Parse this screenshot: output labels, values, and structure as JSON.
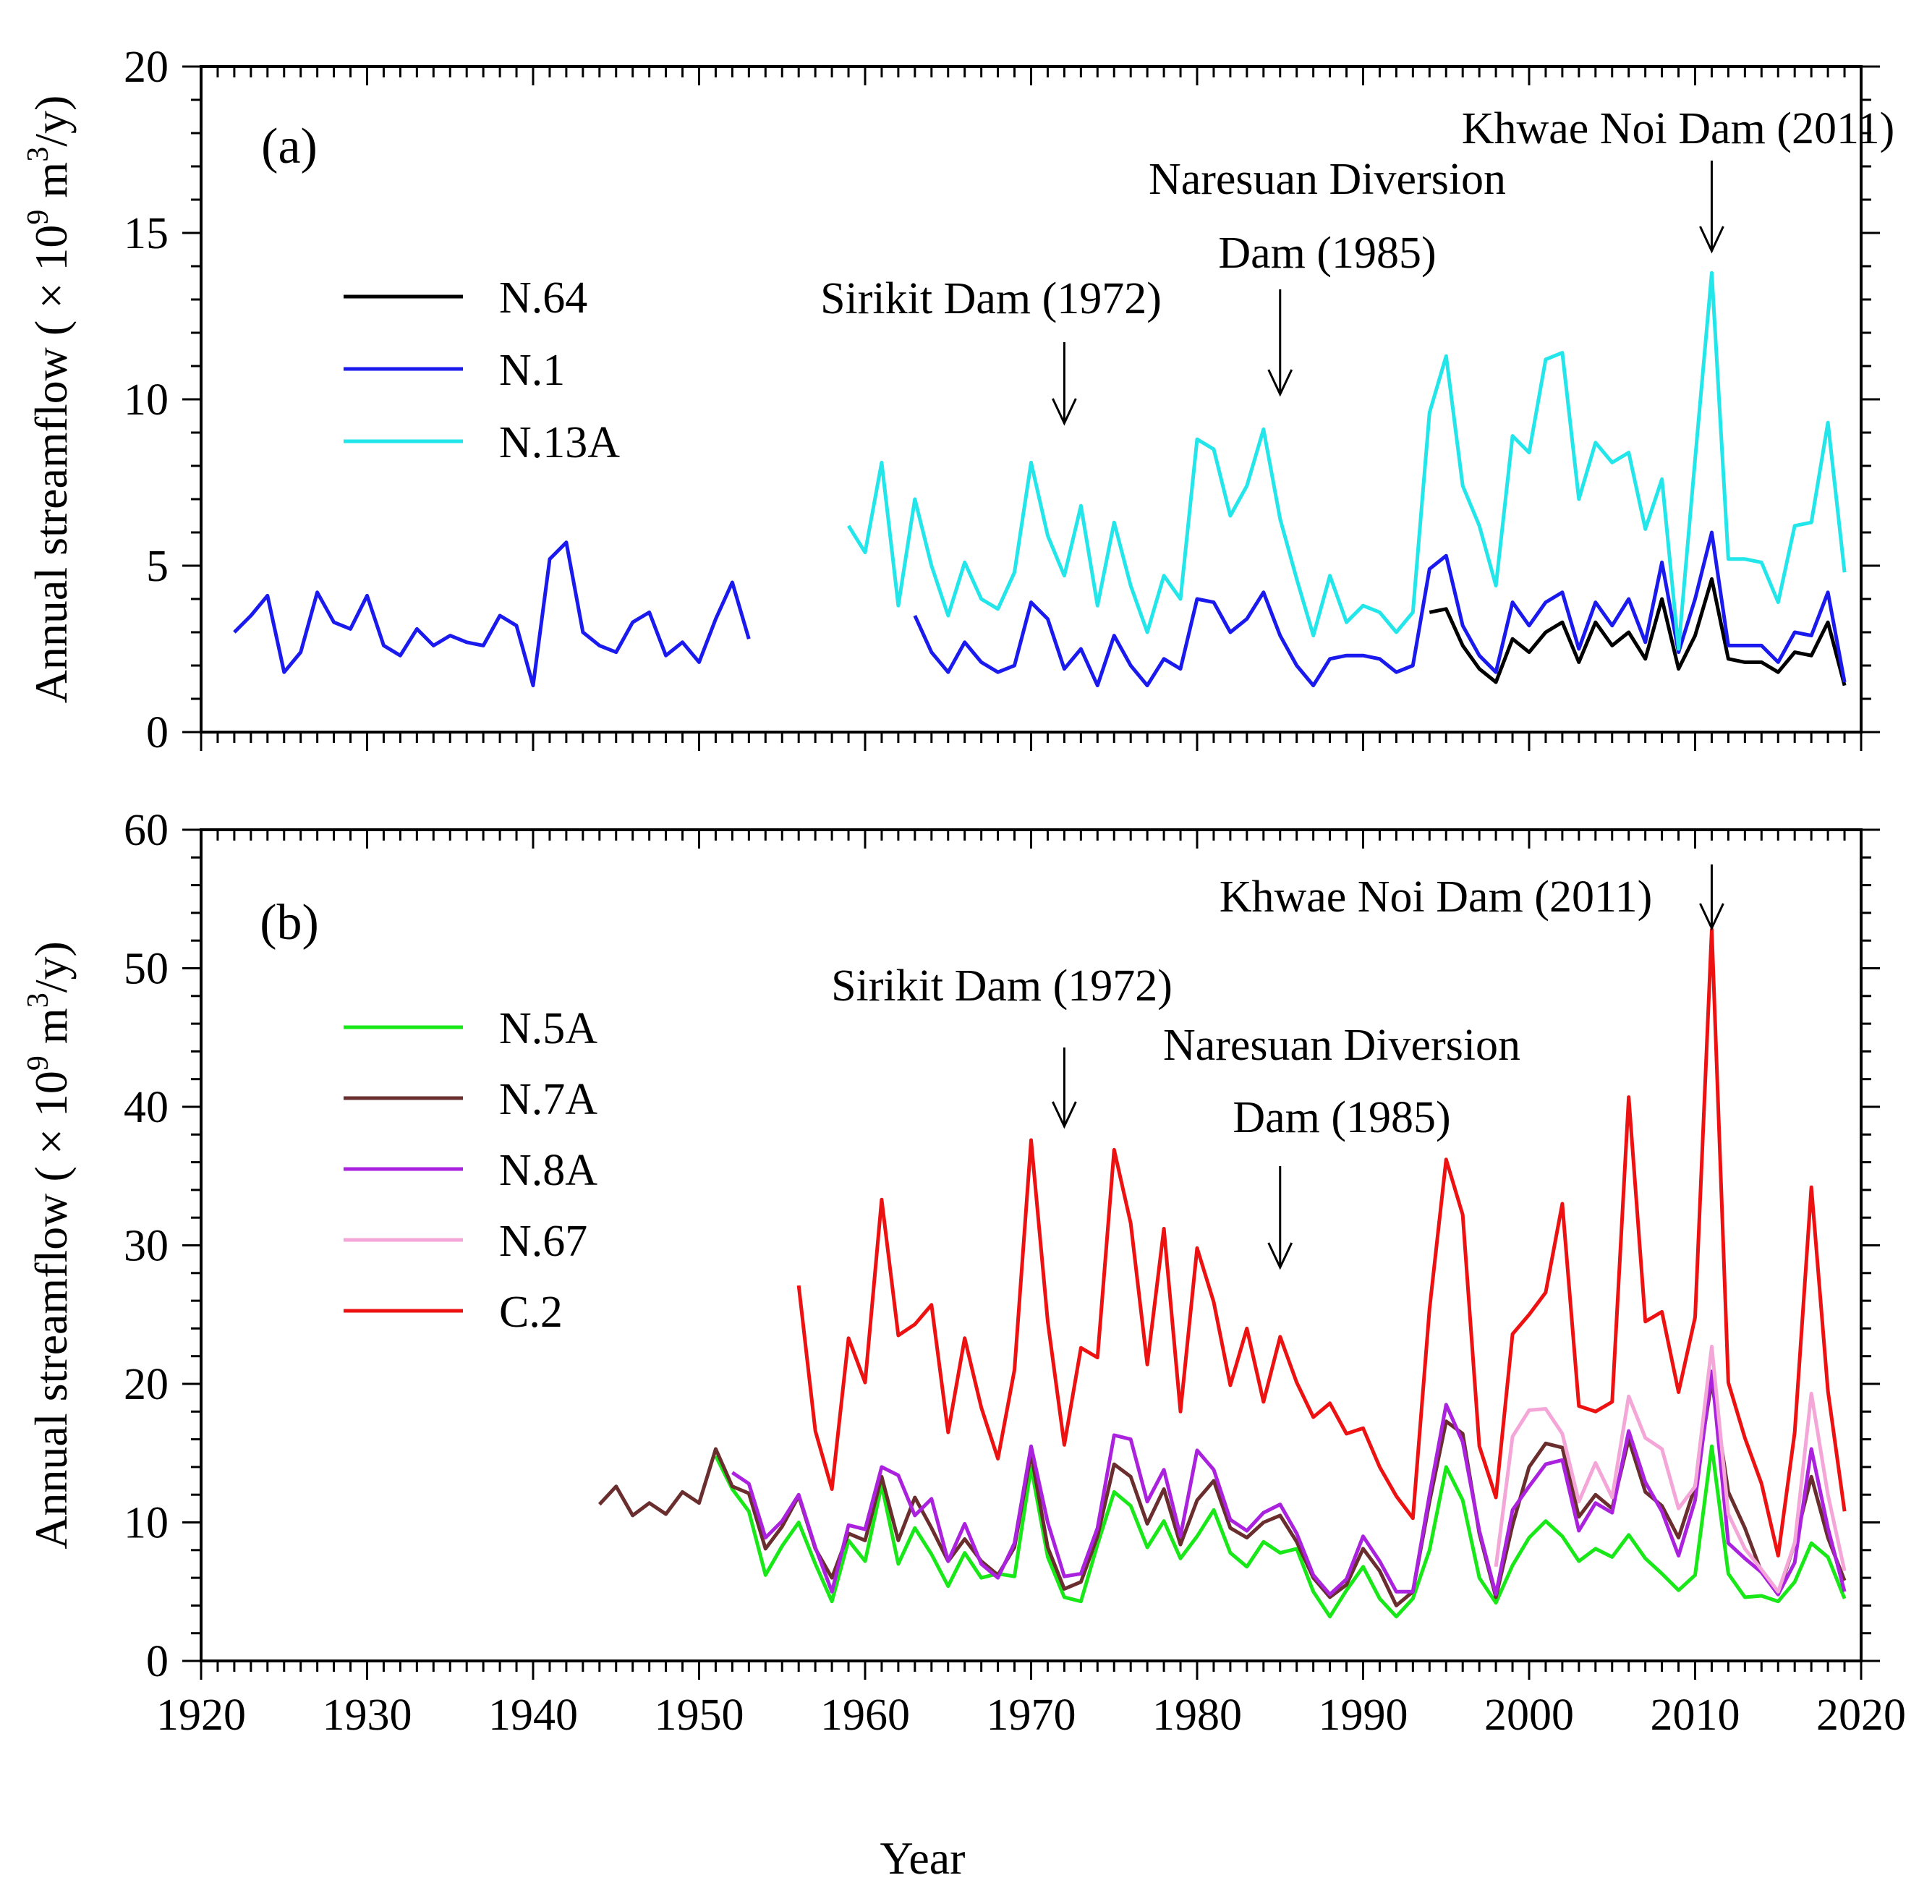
{
  "chart_data": [
    {
      "type": "line",
      "panel_label": "(a)",
      "ylabel_prefix": "Annual streamflow ( × 10",
      "ylabel_exp": "9",
      "ylabel_mid": " m",
      "ylabel_exp2": "3",
      "ylabel_suffix": "/y)",
      "xlim": [
        1920,
        2020
      ],
      "ylim": [
        0,
        20
      ],
      "y_ticks": [
        "0",
        "5",
        "10",
        "15",
        "20"
      ],
      "legend_position": "upper-left",
      "series": [
        {
          "name": "N.64",
          "color": "#000000",
          "x": [
            1994,
            1995,
            1996,
            1997,
            1998,
            1999,
            2000,
            2001,
            2002,
            2003,
            2004,
            2005,
            2006,
            2007,
            2008,
            2009,
            2010,
            2011,
            2012,
            2013,
            2014,
            2015,
            2016,
            2017,
            2018,
            2019
          ],
          "y": [
            3.6,
            3.7,
            2.6,
            1.9,
            1.5,
            2.8,
            2.4,
            3.0,
            3.3,
            2.1,
            3.3,
            2.6,
            3.0,
            2.2,
            4.0,
            1.9,
            2.9,
            4.6,
            2.2,
            2.1,
            2.1,
            1.8,
            2.4,
            2.3,
            3.3,
            1.4
          ]
        },
        {
          "name": "N.1",
          "color": "#1a1aee",
          "x": [
            1922,
            1923,
            1924,
            1925,
            1926,
            1927,
            1928,
            1929,
            1930,
            1931,
            1932,
            1933,
            1934,
            1935,
            1936,
            1937,
            1938,
            1939,
            1940,
            1941,
            1942,
            1943,
            1944,
            1945,
            1946,
            1947,
            1948,
            1949,
            1950,
            1951,
            1952,
            1953,
            null,
            1963,
            1964,
            1965,
            1966,
            1967,
            1968,
            1969,
            1970,
            1971,
            1972,
            1973,
            1974,
            1975,
            1976,
            1977,
            1978,
            1979,
            1980,
            1981,
            1982,
            1983,
            1984,
            1985,
            1986,
            1987,
            1988,
            1989,
            1990,
            1991,
            1992,
            1993,
            1994,
            1995,
            1996,
            1997,
            1998,
            1999,
            2000,
            2001,
            2002,
            2003,
            2004,
            2005,
            2006,
            2007,
            2008,
            2009,
            2010,
            2011,
            2012,
            2013,
            2014,
            2015,
            2016,
            2017,
            2018,
            2019
          ],
          "y": [
            3.0,
            3.5,
            4.1,
            1.8,
            2.4,
            4.2,
            3.3,
            3.1,
            4.1,
            2.6,
            2.3,
            3.1,
            2.6,
            2.9,
            2.7,
            2.6,
            3.5,
            3.2,
            1.4,
            5.2,
            5.7,
            3.0,
            2.6,
            2.4,
            3.3,
            3.6,
            2.3,
            2.7,
            2.1,
            3.4,
            4.5,
            2.8,
            null,
            3.5,
            2.4,
            1.8,
            2.7,
            2.1,
            1.8,
            2.0,
            3.9,
            3.4,
            1.9,
            2.5,
            1.4,
            2.9,
            2.0,
            1.4,
            2.2,
            1.9,
            4.0,
            3.9,
            3.0,
            3.4,
            4.2,
            2.9,
            2.0,
            1.4,
            2.2,
            2.3,
            2.3,
            2.2,
            1.8,
            2.0,
            4.9,
            5.3,
            3.2,
            2.3,
            1.8,
            3.9,
            3.2,
            3.9,
            4.2,
            2.5,
            3.9,
            3.2,
            4.0,
            2.7,
            5.1,
            2.4,
            4.0,
            6.0,
            2.6,
            2.6,
            2.6,
            2.1,
            3.0,
            2.9,
            4.2,
            1.5
          ]
        },
        {
          "name": "N.13A",
          "color": "#22e6ea",
          "x": [
            1959,
            1960,
            1961,
            1962,
            1963,
            1964,
            1965,
            1966,
            1967,
            1968,
            1969,
            1970,
            1971,
            1972,
            1973,
            1974,
            1975,
            1976,
            1977,
            1978,
            1979,
            1980,
            1981,
            1982,
            1983,
            1984,
            1985,
            1986,
            1987,
            1988,
            1989,
            1990,
            1991,
            1992,
            1993,
            1994,
            1995,
            1996,
            1997,
            1998,
            1999,
            2000,
            2001,
            2002,
            2003,
            2004,
            2005,
            2006,
            2007,
            2008,
            2009,
            2010,
            2011,
            2012,
            2013,
            2014,
            2015,
            2016,
            2017,
            2018,
            2019
          ],
          "y": [
            6.2,
            5.4,
            8.1,
            3.8,
            7.0,
            5.0,
            3.5,
            5.1,
            4.0,
            3.7,
            4.8,
            8.1,
            5.9,
            4.7,
            6.8,
            3.8,
            6.3,
            4.4,
            3.0,
            4.7,
            4.0,
            8.8,
            8.5,
            6.5,
            7.4,
            9.1,
            6.4,
            4.6,
            2.9,
            4.7,
            3.3,
            3.8,
            3.6,
            3.0,
            3.6,
            9.6,
            11.3,
            7.4,
            6.2,
            4.4,
            8.9,
            8.4,
            11.2,
            11.4,
            7.0,
            8.7,
            8.1,
            8.4,
            6.1,
            7.6,
            2.5,
            8.2,
            13.8,
            5.2,
            5.2,
            5.1,
            3.9,
            6.2,
            6.3,
            9.3,
            4.8
          ]
        }
      ],
      "annotations": [
        {
          "lines": [
            "Sirikit Dam (1972)"
          ],
          "arrow_year": 1972
        },
        {
          "lines": [
            "Naresuan Diversion",
            "Dam (1985)"
          ],
          "arrow_year": 1985
        },
        {
          "lines": [
            "Khwae Noi Dam (2011)"
          ],
          "arrow_year": 2011
        }
      ]
    },
    {
      "type": "line",
      "panel_label": "(b)",
      "ylabel_prefix": "Annual streamflow ( × 10",
      "ylabel_exp": "9",
      "ylabel_mid": " m",
      "ylabel_exp2": "3",
      "ylabel_suffix": "/y)",
      "xlabel": "Year",
      "xlim": [
        1920,
        2020
      ],
      "ylim": [
        0,
        60
      ],
      "x_ticks": [
        "1920",
        "1930",
        "1940",
        "1950",
        "1960",
        "1970",
        "1980",
        "1990",
        "2000",
        "2010",
        "2020"
      ],
      "y_ticks": [
        "0",
        "10",
        "20",
        "30",
        "40",
        "50",
        "60"
      ],
      "legend_position": "upper-left",
      "series": [
        {
          "name": "N.5A",
          "color": "#18e818",
          "x": [
            1951,
            1952,
            1953,
            1954,
            1955,
            1956,
            1957,
            1958,
            1959,
            1960,
            1961,
            1962,
            1963,
            1964,
            1965,
            1966,
            1967,
            1968,
            1969,
            1970,
            1971,
            1972,
            1973,
            1974,
            1975,
            1976,
            1977,
            1978,
            1979,
            1980,
            1981,
            1982,
            1983,
            1984,
            1985,
            1986,
            1987,
            1988,
            1989,
            1990,
            1991,
            1992,
            1993,
            1994,
            1995,
            1996,
            1997,
            1998,
            1999,
            2000,
            2001,
            2002,
            2003,
            2004,
            2005,
            2006,
            2007,
            2008,
            2009,
            2010,
            2011,
            2012,
            2013,
            2014,
            2015,
            2016,
            2017,
            2018,
            2019
          ],
          "y": [
            14.8,
            12.4,
            10.8,
            6.2,
            8.3,
            10.0,
            7.0,
            4.3,
            8.7,
            7.2,
            12.7,
            7.0,
            9.6,
            7.7,
            5.4,
            7.8,
            6.0,
            6.3,
            6.1,
            14.0,
            7.5,
            4.6,
            4.3,
            8.4,
            12.2,
            11.2,
            8.2,
            10.1,
            7.4,
            9.0,
            10.9,
            7.8,
            6.8,
            8.6,
            7.8,
            8.1,
            5.0,
            3.2,
            5.1,
            6.8,
            4.5,
            3.2,
            4.5,
            8.0,
            14.0,
            11.6,
            6.0,
            4.2,
            6.9,
            8.9,
            10.1,
            9.0,
            7.2,
            8.1,
            7.5,
            9.1,
            7.4,
            6.3,
            5.1,
            6.2,
            15.5,
            6.3,
            4.6,
            4.7,
            4.3,
            5.7,
            8.5,
            7.5,
            4.5
          ]
        },
        {
          "name": "N.7A",
          "color": "#6b2e2e",
          "x": [
            1944,
            1945,
            1946,
            1947,
            1948,
            1949,
            1950,
            1951,
            1952,
            1953,
            1954,
            1955,
            1956,
            1957,
            1958,
            1959,
            1960,
            1961,
            1962,
            1963,
            1964,
            1965,
            1966,
            1967,
            1968,
            1969,
            1970,
            1971,
            1972,
            1973,
            1974,
            1975,
            1976,
            1977,
            1978,
            1979,
            1980,
            1981,
            1982,
            1983,
            1984,
            1985,
            1986,
            1987,
            1988,
            1989,
            1990,
            1991,
            1992,
            1993,
            1994,
            1995,
            1996,
            1997,
            1998,
            1999,
            2000,
            2001,
            2002,
            2003,
            2004,
            2005,
            2006,
            2007,
            2008,
            2009,
            2010,
            2011,
            2012,
            2013,
            2014,
            2015,
            2016,
            2017,
            2018,
            2019
          ],
          "y": [
            11.3,
            12.6,
            10.5,
            11.4,
            10.6,
            12.2,
            11.4,
            15.3,
            12.6,
            12.1,
            8.1,
            9.7,
            11.9,
            8.1,
            6.0,
            9.2,
            8.7,
            13.3,
            8.7,
            11.8,
            9.6,
            7.2,
            8.8,
            7.2,
            6.2,
            8.2,
            15.0,
            8.2,
            5.2,
            5.7,
            9.0,
            14.2,
            13.3,
            9.9,
            12.4,
            8.4,
            11.6,
            13.0,
            9.6,
            8.9,
            10.0,
            10.5,
            8.6,
            6.0,
            4.6,
            5.5,
            8.1,
            6.5,
            4.0,
            5.0,
            11.5,
            17.3,
            16.4,
            9.2,
            4.6,
            9.8,
            14.0,
            15.7,
            15.4,
            10.4,
            12.0,
            11.0,
            16.0,
            12.2,
            11.2,
            8.9,
            12.6,
            20.2,
            12.2,
            9.6,
            6.4,
            4.8,
            8.5,
            13.3,
            8.9,
            5.8
          ]
        },
        {
          "name": "N.8A",
          "color": "#aa22dd",
          "x": [
            1952,
            1953,
            1954,
            1955,
            1956,
            1957,
            1958,
            1959,
            1960,
            1961,
            1962,
            1963,
            1964,
            1965,
            1966,
            1967,
            1968,
            1969,
            1970,
            1971,
            1972,
            1973,
            1974,
            1975,
            1976,
            1977,
            1978,
            1979,
            1980,
            1981,
            1982,
            1983,
            1984,
            1985,
            1986,
            1987,
            1988,
            1989,
            1990,
            1991,
            1992,
            1993,
            1994,
            1995,
            1996,
            1997,
            1998,
            1999,
            2000,
            2001,
            2002,
            2003,
            2004,
            2005,
            2006,
            2007,
            2008,
            2009,
            2010,
            2011,
            2012,
            2013,
            2014,
            2015,
            2016,
            2017,
            2018,
            2019
          ],
          "y": [
            13.6,
            12.8,
            8.9,
            10.1,
            12.0,
            8.2,
            5.0,
            9.8,
            9.5,
            14.0,
            13.4,
            10.5,
            11.7,
            7.2,
            9.9,
            7.0,
            6.0,
            8.5,
            15.5,
            10.0,
            6.1,
            6.3,
            9.6,
            16.3,
            16.0,
            11.5,
            13.8,
            9.0,
            15.2,
            13.8,
            10.2,
            9.4,
            10.7,
            11.3,
            9.2,
            6.2,
            4.8,
            5.9,
            9.0,
            7.2,
            5.0,
            5.0,
            12.0,
            18.5,
            15.8,
            9.4,
            4.8,
            10.9,
            12.6,
            14.2,
            14.5,
            9.4,
            11.4,
            10.7,
            16.6,
            12.9,
            10.8,
            7.6,
            11.6,
            20.9,
            8.5,
            7.4,
            6.4,
            4.8,
            7.1,
            15.3,
            9.6,
            5.0
          ]
        },
        {
          "name": "N.67",
          "color": "#f4a6d8",
          "x": [
            1998,
            1999,
            2000,
            2001,
            2002,
            2003,
            2004,
            2005,
            2006,
            2007,
            2008,
            2009,
            2010,
            2011,
            2012,
            2013,
            2014,
            2015,
            2016,
            2017,
            2018,
            2019
          ],
          "y": [
            6.8,
            16.2,
            18.1,
            18.2,
            16.4,
            11.5,
            14.3,
            11.8,
            19.1,
            16.1,
            15.3,
            11.0,
            12.6,
            22.7,
            10.6,
            8.1,
            6.6,
            5.0,
            8.5,
            19.3,
            12.0,
            6.5
          ]
        },
        {
          "name": "C.2",
          "color": "#ee1111",
          "x": [
            1956,
            1957,
            1958,
            1959,
            1960,
            1961,
            1962,
            1963,
            1964,
            1965,
            1966,
            1967,
            1968,
            1969,
            1970,
            1971,
            1972,
            1973,
            1974,
            1975,
            1976,
            1977,
            1978,
            1979,
            1980,
            1981,
            1982,
            1983,
            1984,
            1985,
            1986,
            1987,
            1988,
            1989,
            1990,
            1991,
            1992,
            1993,
            1994,
            1995,
            1996,
            1997,
            1998,
            1999,
            2000,
            2001,
            2002,
            2003,
            2004,
            2005,
            2006,
            2007,
            2008,
            2009,
            2010,
            2011,
            2012,
            2013,
            2014,
            2015,
            2016,
            2017,
            2018,
            2019
          ],
          "y": [
            27.1,
            16.6,
            12.4,
            23.3,
            20.1,
            33.3,
            23.5,
            24.3,
            25.7,
            16.5,
            23.3,
            18.3,
            14.6,
            21.0,
            37.6,
            24.5,
            15.6,
            22.6,
            21.9,
            36.9,
            31.6,
            21.4,
            31.2,
            18.0,
            29.8,
            25.9,
            19.9,
            24.0,
            18.7,
            23.4,
            20.1,
            17.6,
            18.6,
            16.4,
            16.8,
            14.0,
            11.9,
            10.3,
            25.4,
            36.2,
            32.2,
            15.5,
            11.8,
            23.6,
            25.0,
            26.6,
            33.0,
            18.4,
            18.0,
            18.7,
            40.7,
            24.5,
            25.2,
            19.4,
            24.8,
            52.8,
            20.1,
            16.1,
            12.8,
            7.6,
            16.5,
            34.2,
            19.5,
            10.8
          ]
        }
      ],
      "annotations": [
        {
          "lines": [
            "Sirikit Dam (1972)"
          ],
          "arrow_year": 1972
        },
        {
          "lines": [
            "Naresuan Diversion",
            "Dam (1985)"
          ],
          "arrow_year": 1985
        },
        {
          "lines": [
            "Khwae Noi Dam (2011)"
          ],
          "arrow_year": 2011
        }
      ]
    }
  ]
}
